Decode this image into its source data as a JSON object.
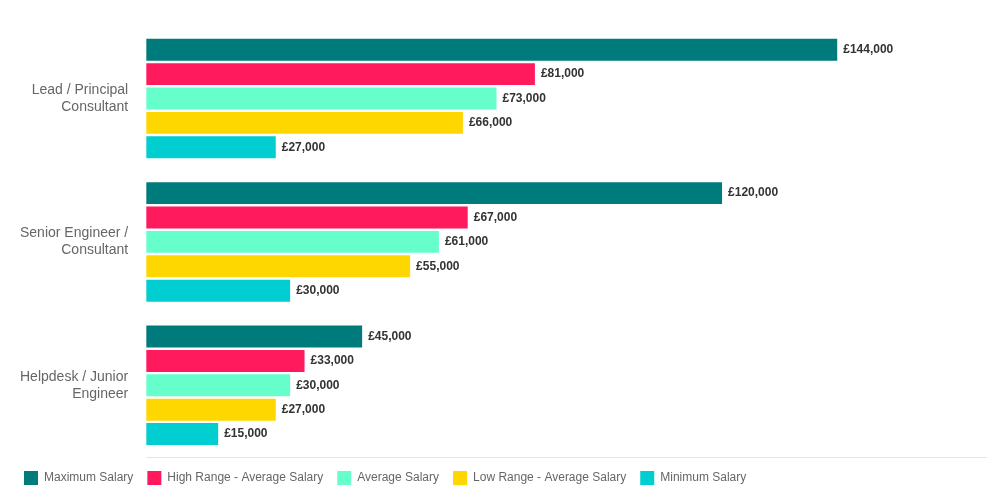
{
  "chart_data": {
    "type": "bar",
    "orientation": "horizontal",
    "categories": [
      "Lead / Principal\nConsultant",
      "Senior Engineer /\nConsultant",
      "Helpdesk / Junior\nEngineer"
    ],
    "series": [
      {
        "name": "Maximum Salary",
        "color": "#007B7B",
        "values": [
          144000,
          120000,
          45000
        ],
        "value_labels": [
          "£144,000",
          "£120,000",
          "£45,000"
        ]
      },
      {
        "name": "High Range - Average Salary",
        "color": "#FF1A5E",
        "values": [
          81000,
          67000,
          33000
        ],
        "value_labels": [
          "£81,000",
          "£67,000",
          "£33,000"
        ]
      },
      {
        "name": "Average Salary",
        "color": "#66FFCC",
        "values": [
          73000,
          61000,
          30000
        ],
        "value_labels": [
          "£73,000",
          "£61,000",
          "£30,000"
        ]
      },
      {
        "name": "Low Range - Average Salary",
        "color": "#FFD700",
        "values": [
          66000,
          55000,
          27000
        ],
        "value_labels": [
          "£66,000",
          "£55,000",
          "£27,000"
        ]
      },
      {
        "name": "Minimum Salary",
        "color": "#00CED1",
        "values": [
          27000,
          30000,
          15000
        ],
        "value_labels": [
          "£27,000",
          "£30,000",
          "£15,000"
        ]
      }
    ],
    "xlim": [
      0,
      175000
    ],
    "grid": false,
    "legend": "bottom",
    "data_labels": true,
    "tick_labels": "y"
  }
}
